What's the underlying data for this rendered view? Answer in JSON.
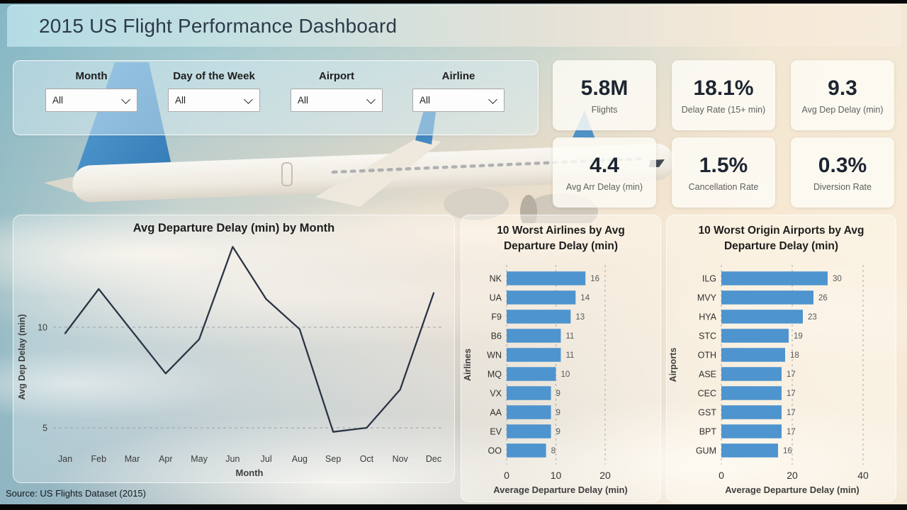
{
  "header": {
    "title": "2015 US Flight Performance Dashboard"
  },
  "filters": {
    "items": [
      {
        "label": "Month",
        "value": "All"
      },
      {
        "label": "Day of the Week",
        "value": "All"
      },
      {
        "label": "Airport",
        "value": "All"
      },
      {
        "label": "Airline",
        "value": "All"
      }
    ]
  },
  "kpis": [
    {
      "value": "5.8M",
      "label": "Flights"
    },
    {
      "value": "18.1%",
      "label": "Delay Rate (15+ min)"
    },
    {
      "value": "9.3",
      "label": "Avg Dep Delay (min)"
    },
    {
      "value": "4.4",
      "label": "Avg Arr Delay (min)"
    },
    {
      "value": "1.5%",
      "label": "Cancellation Rate"
    },
    {
      "value": "0.3%",
      "label": "Diversion Rate"
    }
  ],
  "chart_data": [
    {
      "type": "line",
      "title": "Avg Departure Delay (min) by Month",
      "xlabel": "Month",
      "ylabel": "Avg Dep Delay (min)",
      "categories": [
        "Jan",
        "Feb",
        "Mar",
        "Apr",
        "May",
        "Jun",
        "Jul",
        "Aug",
        "Sep",
        "Oct",
        "Nov",
        "Dec"
      ],
      "values": [
        9.7,
        11.9,
        9.8,
        7.7,
        9.4,
        14.0,
        11.4,
        9.9,
        4.8,
        5.0,
        6.9,
        11.7
      ],
      "yticks": [
        5,
        10
      ],
      "ylim": [
        3.5,
        14.5
      ],
      "grid": "dashed-horizontal",
      "legend": "none",
      "line_color": "#2b3445"
    },
    {
      "type": "bar",
      "orientation": "horizontal",
      "title": "10 Worst Airlines by Avg Departure Delay (min)",
      "xlabel": "Average Departure Delay (min)",
      "ylabel": "Airlines",
      "categories": [
        "NK",
        "UA",
        "F9",
        "B6",
        "WN",
        "MQ",
        "VX",
        "AA",
        "EV",
        "OO"
      ],
      "values": [
        16,
        14,
        13,
        11,
        11,
        10,
        9,
        9,
        9,
        8
      ],
      "xticks": [
        0,
        10,
        20
      ],
      "xlim": [
        0,
        24
      ],
      "grid": "dashed-vertical",
      "bar_color": "#4e94ce"
    },
    {
      "type": "bar",
      "orientation": "horizontal",
      "title": "10 Worst Origin Airports by Avg Departure Delay (min)",
      "xlabel": "Average Departure Delay (min)",
      "ylabel": "Airports",
      "categories": [
        "ILG",
        "MVY",
        "HYA",
        "STC",
        "OTH",
        "ASE",
        "CEC",
        "GST",
        "BPT",
        "GUM"
      ],
      "values": [
        30,
        26,
        23,
        19,
        18,
        17,
        17,
        17,
        17,
        16
      ],
      "xticks": [
        0,
        20,
        40
      ],
      "xlim": [
        0,
        49
      ],
      "grid": "dashed-vertical",
      "bar_color": "#4e94ce"
    }
  ],
  "source": "Source: US Flights Dataset (2015)",
  "colors": {
    "bar_blue": "#4e94ce",
    "line_navy": "#2b3445",
    "kpi_value": "#1c2531",
    "kpi_label": "#5f5f5f",
    "title_text": "#2c3a49",
    "grid_gray": "#8f949a"
  },
  "icons": {
    "dropdown": "chevron-down-icon",
    "background": "airplane-image"
  }
}
